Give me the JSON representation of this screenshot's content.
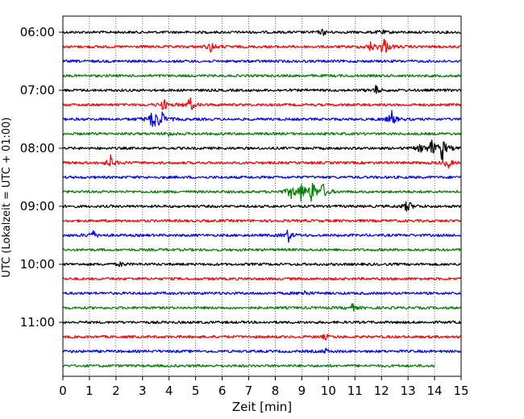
{
  "chart_data": {
    "type": "line",
    "title": "",
    "xlabel": "Zeit  [min]",
    "ylabel": "UTC (Lokalzeit = UTC + 01:00)",
    "xlim": [
      0,
      15
    ],
    "x_ticks": [
      "0",
      "1",
      "2",
      "3",
      "4",
      "5",
      "6",
      "7",
      "8",
      "9",
      "10",
      "11",
      "12",
      "13",
      "14",
      "15"
    ],
    "y_ticks": [
      "06:00",
      "07:00",
      "08:00",
      "09:00",
      "10:00",
      "11:00"
    ],
    "y_ticks_on_traces": [
      0,
      4,
      8,
      12,
      16,
      20
    ],
    "grid": "vertical dotted at each minute",
    "trace_colors": [
      "#000000",
      "#ff0000",
      "#0000ff",
      "#008000"
    ],
    "traces": [
      {
        "start": "06:00",
        "color": "#000000",
        "events": [
          [
            9.8,
            0.4
          ],
          [
            12.0,
            0.3
          ]
        ]
      },
      {
        "start": "06:15",
        "color": "#ff0000",
        "events": [
          [
            5.6,
            0.8
          ],
          [
            12.1,
            1.5
          ],
          [
            11.6,
            0.6
          ]
        ]
      },
      {
        "start": "06:30",
        "color": "#0000ff",
        "events": []
      },
      {
        "start": "06:45",
        "color": "#008000",
        "events": []
      },
      {
        "start": "07:00",
        "color": "#000000",
        "events": [
          [
            11.8,
            0.6
          ]
        ]
      },
      {
        "start": "07:15",
        "color": "#ff0000",
        "events": [
          [
            3.8,
            0.8
          ],
          [
            4.8,
            1.0
          ]
        ]
      },
      {
        "start": "07:30",
        "color": "#0000ff",
        "events": [
          [
            3.4,
            1.6
          ],
          [
            3.7,
            1.3
          ],
          [
            12.4,
            1.2
          ]
        ]
      },
      {
        "start": "07:45",
        "color": "#008000",
        "events": [
          [
            4.0,
            0.3
          ]
        ]
      },
      {
        "start": "08:00",
        "color": "#000000",
        "events": [
          [
            13.5,
            0.6
          ],
          [
            13.9,
            1.0
          ],
          [
            14.3,
            1.8
          ]
        ]
      },
      {
        "start": "08:15",
        "color": "#ff0000",
        "events": [
          [
            1.8,
            1.0
          ],
          [
            14.5,
            0.8
          ]
        ]
      },
      {
        "start": "08:30",
        "color": "#0000ff",
        "events": []
      },
      {
        "start": "08:45",
        "color": "#008000",
        "events": [
          [
            8.6,
            1.0
          ],
          [
            9.0,
            1.3
          ],
          [
            9.4,
            1.6
          ],
          [
            9.8,
            1.0
          ]
        ]
      },
      {
        "start": "09:00",
        "color": "#000000",
        "events": [
          [
            13.0,
            1.0
          ]
        ]
      },
      {
        "start": "09:15",
        "color": "#ff0000",
        "events": []
      },
      {
        "start": "09:30",
        "color": "#0000ff",
        "events": [
          [
            1.1,
            0.8
          ],
          [
            8.5,
            0.9
          ]
        ]
      },
      {
        "start": "09:45",
        "color": "#008000",
        "events": []
      },
      {
        "start": "10:00",
        "color": "#000000",
        "events": [
          [
            2.2,
            0.3
          ]
        ]
      },
      {
        "start": "10:15",
        "color": "#ff0000",
        "events": []
      },
      {
        "start": "10:30",
        "color": "#0000ff",
        "events": [
          [
            9.1,
            0.4
          ]
        ]
      },
      {
        "start": "10:45",
        "color": "#008000",
        "events": [
          [
            10.9,
            0.5
          ]
        ]
      },
      {
        "start": "11:00",
        "color": "#000000",
        "events": []
      },
      {
        "start": "11:15",
        "color": "#ff0000",
        "events": [
          [
            9.9,
            0.3
          ]
        ]
      },
      {
        "start": "11:30",
        "color": "#0000ff",
        "events": [
          [
            9.9,
            0.3
          ]
        ]
      },
      {
        "start": "11:45",
        "color": "#008000",
        "end_minute": 14.0,
        "events": []
      }
    ]
  }
}
